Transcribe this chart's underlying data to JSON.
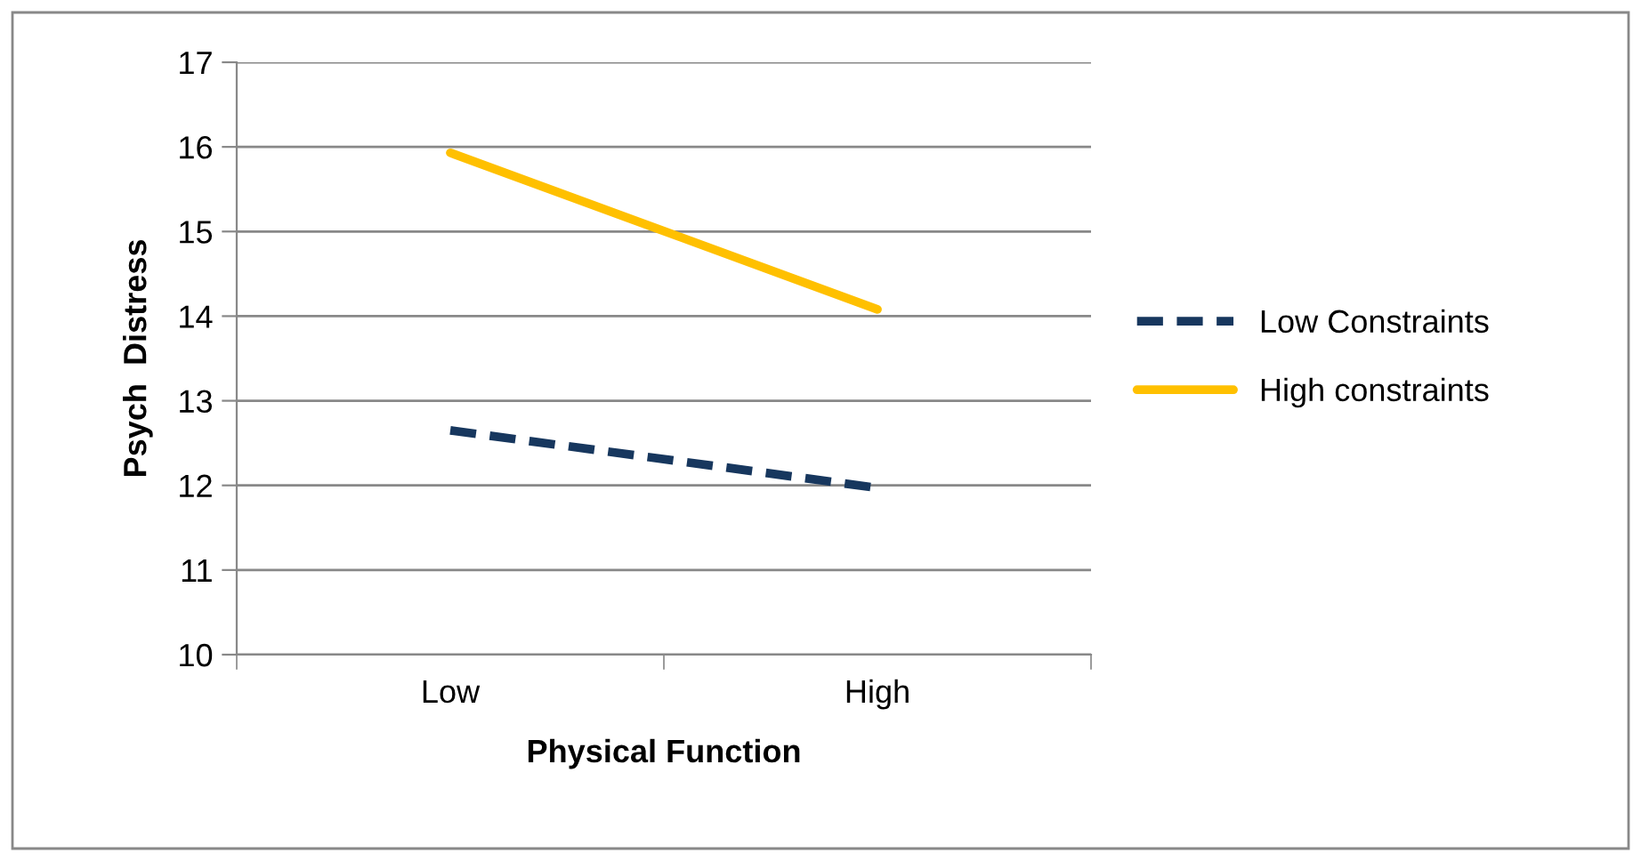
{
  "chart_data": {
    "type": "line",
    "xlabel": "Physical Function",
    "ylabel": "Psych  Distress",
    "categories": [
      "Low",
      "High"
    ],
    "series": [
      {
        "name": "Low Constraints",
        "color": "#17375e",
        "values": [
          12.65,
          11.97
        ],
        "line_style": "dashed"
      },
      {
        "name": "High constraints",
        "color": "#ffc000",
        "values": [
          15.93,
          14.08
        ],
        "line_style": "solid"
      }
    ],
    "ylim": [
      10,
      17
    ],
    "yticks": [
      10,
      11,
      12,
      13,
      14,
      15,
      16,
      17
    ],
    "grid": "y",
    "legend": "right",
    "marker": "none"
  }
}
